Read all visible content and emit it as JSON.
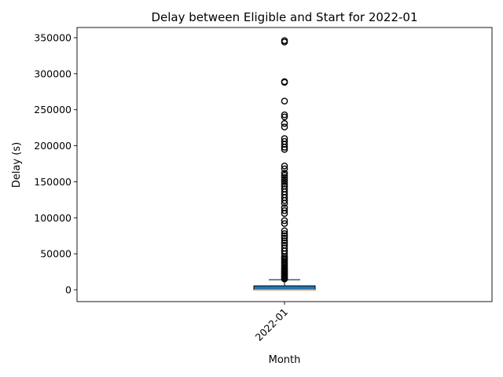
{
  "chart_data": {
    "type": "box",
    "title": "Delay between Eligible and Start for 2022-01",
    "xlabel": "Month",
    "ylabel": "Delay (s)",
    "categories": [
      "2022-01"
    ],
    "ylim": [
      -17500,
      364000
    ],
    "yticks": [
      0,
      50000,
      100000,
      150000,
      200000,
      250000,
      300000,
      350000
    ],
    "ytick_labels": [
      "0",
      "50000",
      "100000",
      "150000",
      "200000",
      "250000",
      "300000",
      "350000"
    ],
    "grid": false,
    "boxes": [
      {
        "category": "2022-01",
        "whisker_low": 0,
        "q1": 0,
        "median": 300,
        "q3": 5500,
        "whisker_high": 14000,
        "outliers": [
          15000,
          16500,
          18000,
          19500,
          21000,
          22500,
          24000,
          25500,
          27000,
          28500,
          30000,
          32000,
          34000,
          36000,
          38000,
          40000,
          42000,
          44000,
          46000,
          50000,
          54000,
          58000,
          62000,
          65000,
          68000,
          72000,
          75000,
          78000,
          82000,
          92000,
          96000,
          106000,
          110000,
          114000,
          120000,
          124000,
          128000,
          132000,
          136000,
          140000,
          144000,
          147000,
          150000,
          153000,
          156000,
          159000,
          162000,
          168000,
          172000,
          195000,
          198000,
          202000,
          206000,
          210000,
          226000,
          231000,
          240000,
          243000,
          262000,
          288000,
          289000,
          344000,
          346000
        ]
      }
    ],
    "colors": {
      "box_fill": "#1f77b4",
      "median": "#ff7f0e",
      "lines": "#000000"
    }
  }
}
